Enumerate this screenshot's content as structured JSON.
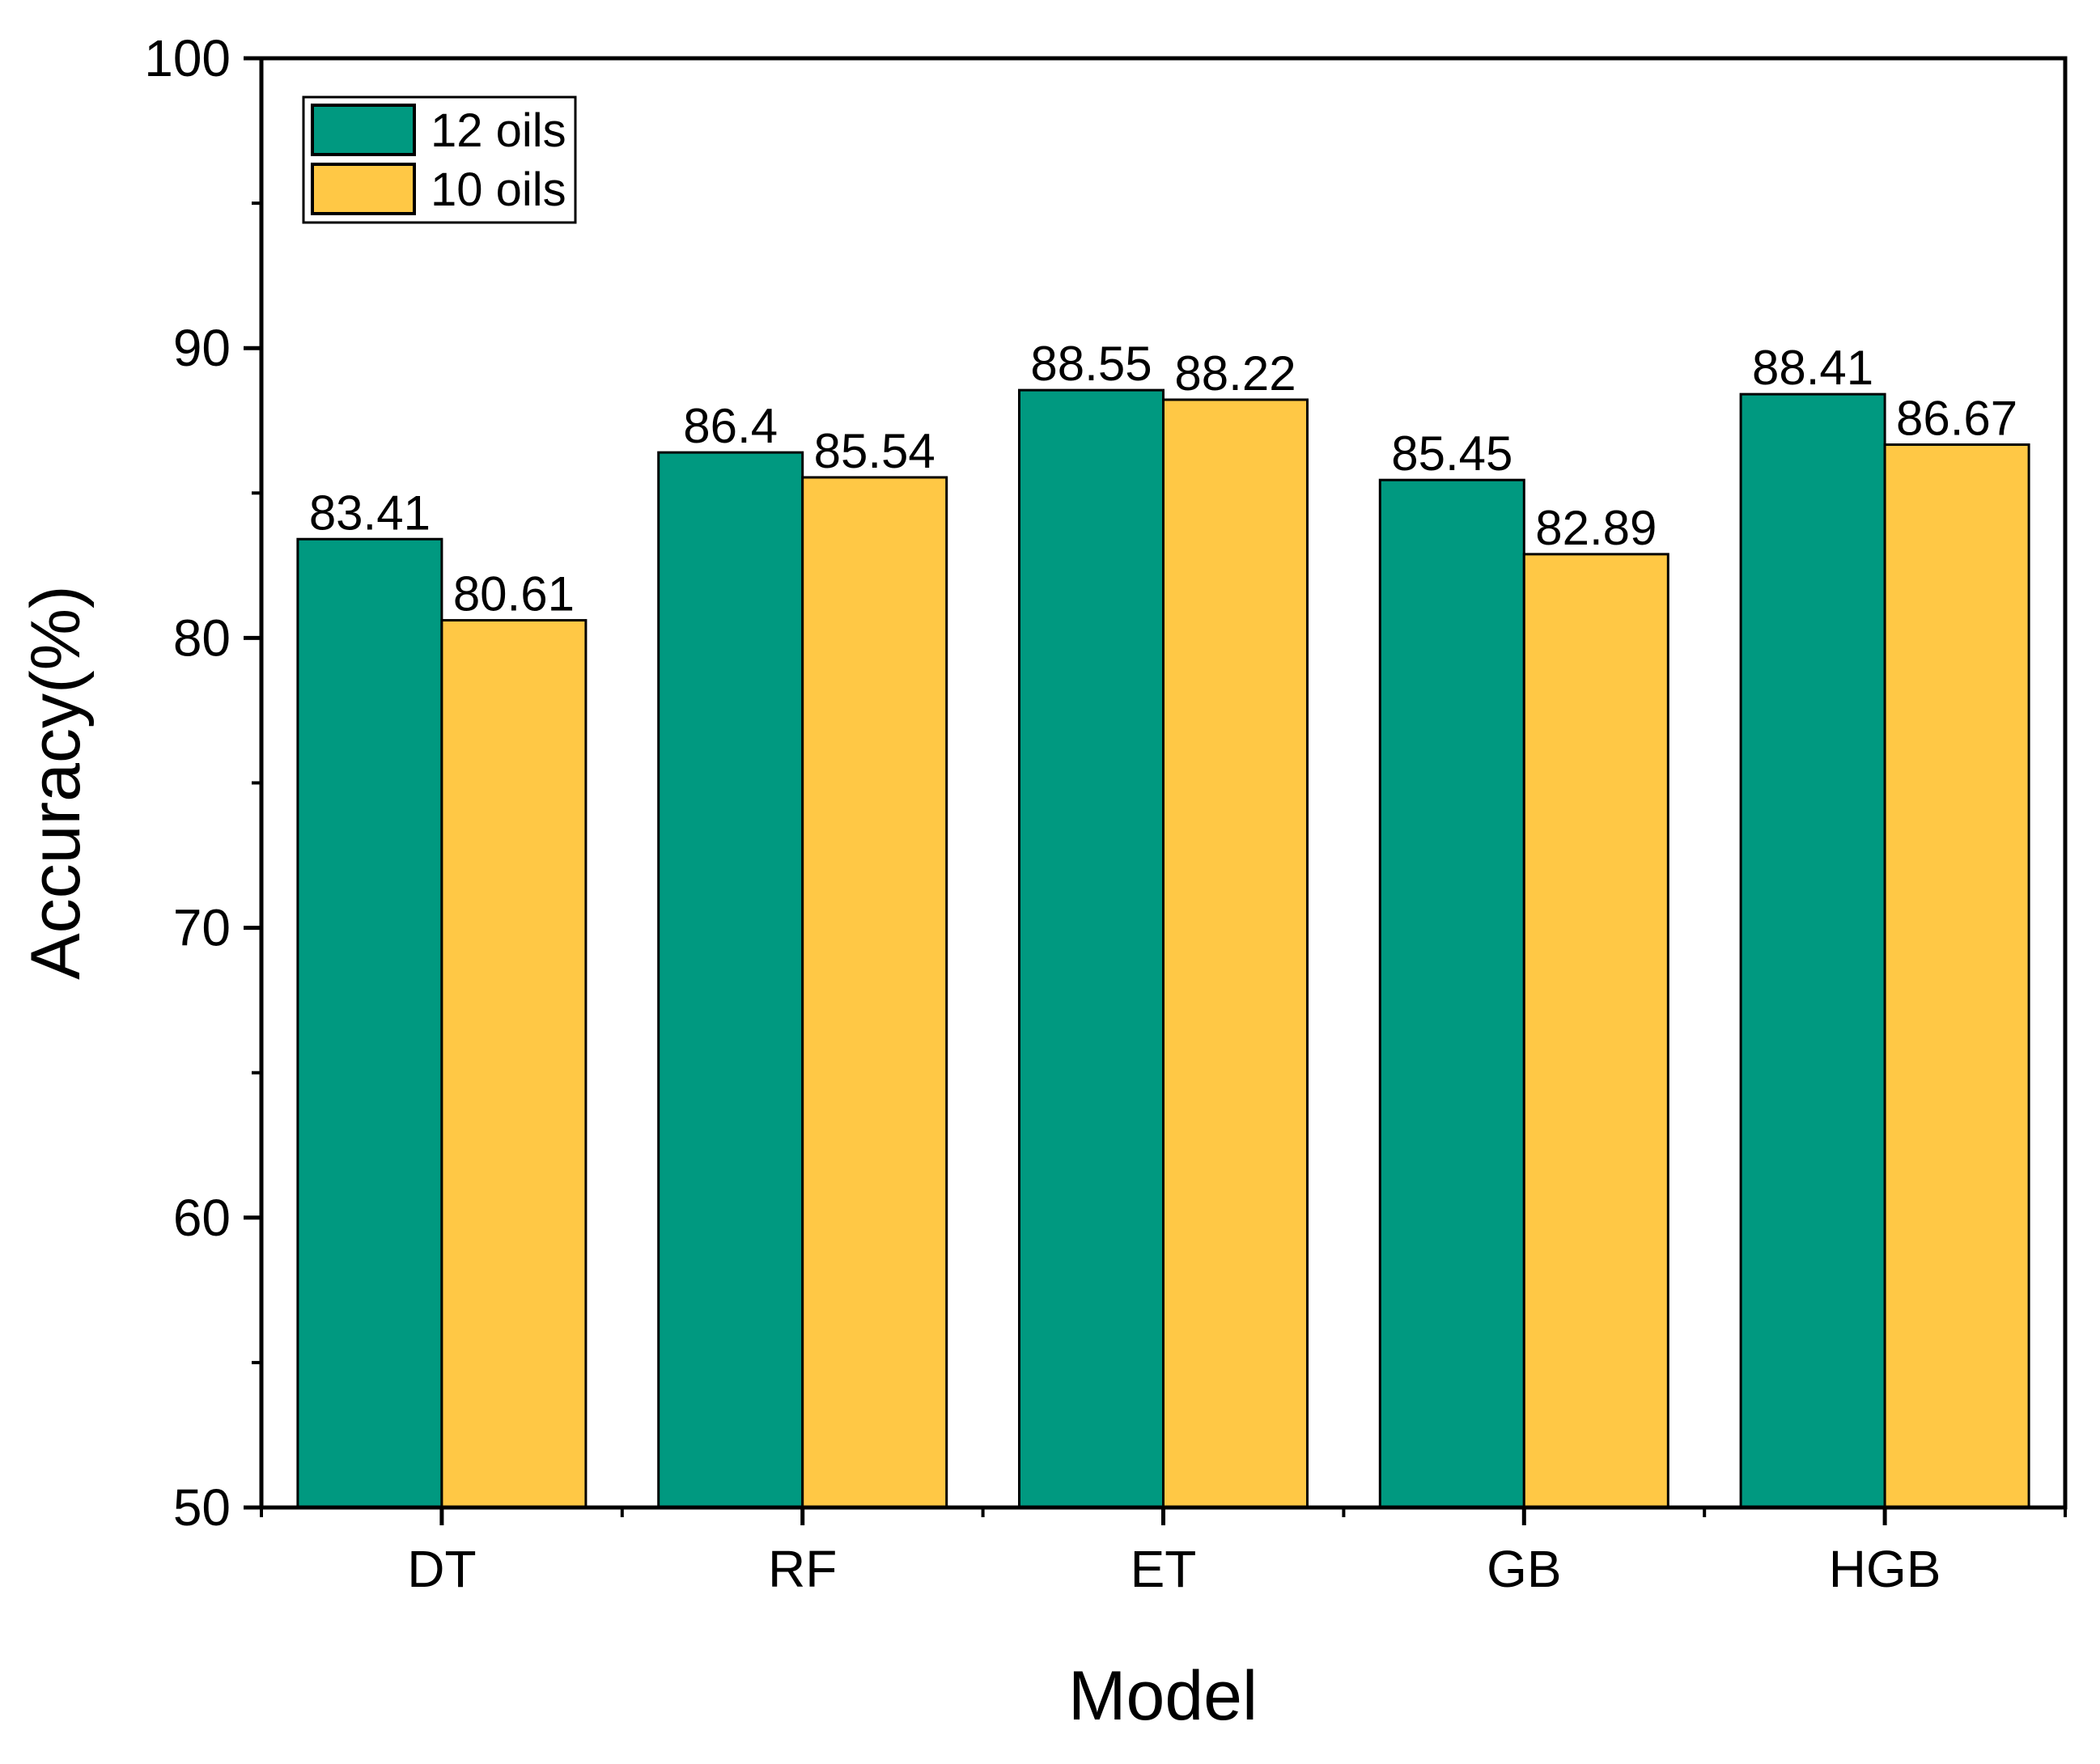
{
  "chart_data": {
    "type": "bar",
    "title": "",
    "xlabel": "Model",
    "ylabel": "Accuracy(%)",
    "ylim": [
      50,
      100
    ],
    "yticks": [
      50,
      60,
      70,
      80,
      90,
      100
    ],
    "categories": [
      "DT",
      "RF",
      "ET",
      "GB",
      "HGB"
    ],
    "series": [
      {
        "name": "12 oils",
        "color": "#009980",
        "values": [
          83.41,
          86.4,
          88.55,
          85.45,
          88.41
        ],
        "labels": [
          "83.41",
          "86.4",
          "88.55",
          "85.45",
          "88.41"
        ]
      },
      {
        "name": "10 oils",
        "color": "#FFC845",
        "values": [
          80.61,
          85.54,
          88.22,
          82.89,
          86.67
        ],
        "labels": [
          "80.61",
          "85.54",
          "88.22",
          "82.89",
          "86.67"
        ]
      }
    ],
    "legend": "top-left",
    "grid": false
  }
}
